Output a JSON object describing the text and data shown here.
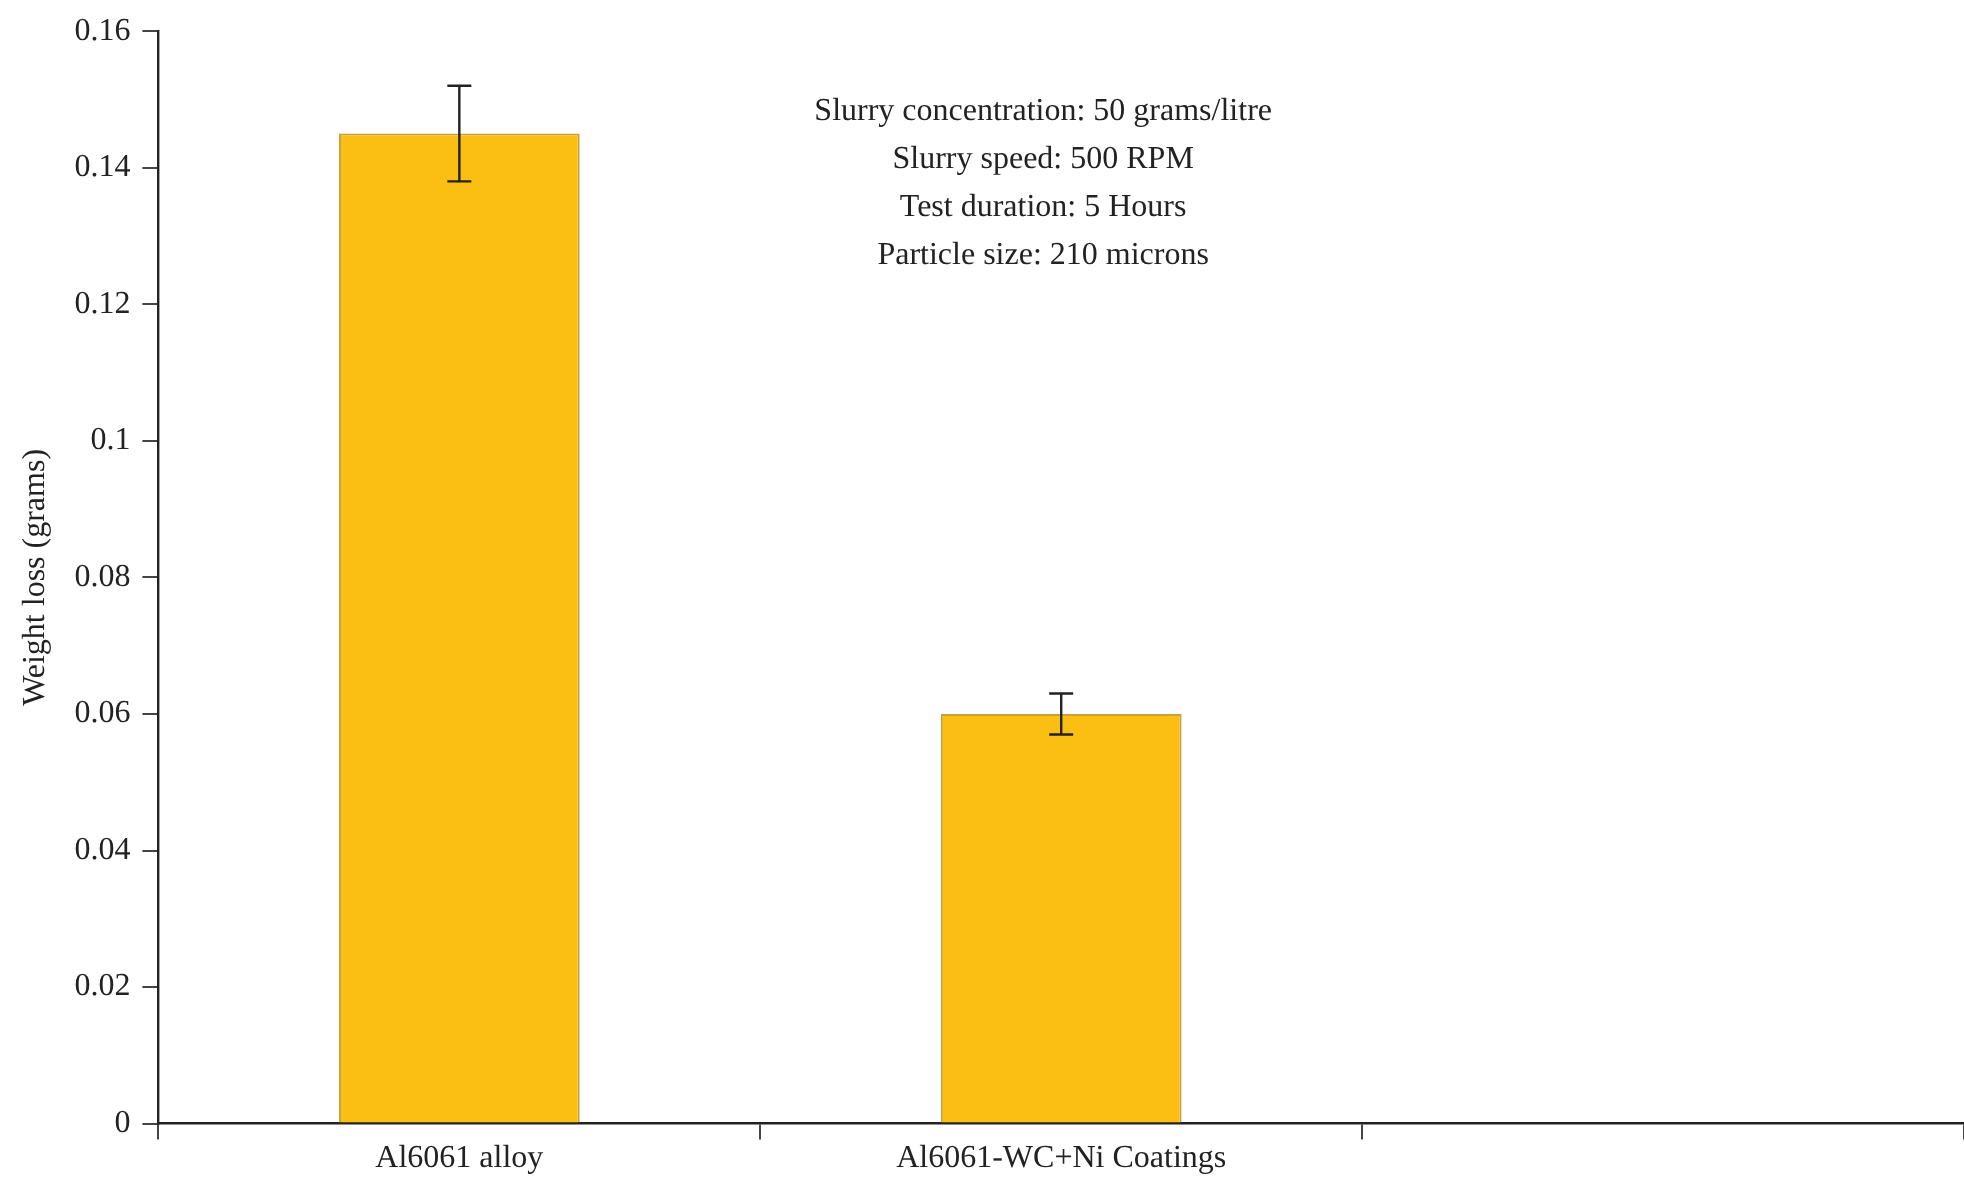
{
  "chart_data": {
    "type": "bar",
    "ylabel": "Weight loss (grams)",
    "categories": [
      "Al6061 alloy",
      "Al6061-WC+Ni Coatings",
      null
    ],
    "values": [
      0.145,
      0.06,
      null
    ],
    "errors": [
      0.007,
      0.003,
      null
    ],
    "color": "#fbbf13",
    "ylim": [
      0,
      0.16
    ],
    "yticks": [
      0,
      0.02,
      0.04,
      0.06,
      0.08,
      0.1,
      0.12,
      0.14,
      0.16
    ],
    "grid": false,
    "legend": false,
    "annotations": [
      "Slurry concentration: 50 grams/litre",
      "Slurry speed: 500 RPM",
      "Test duration: 5 Hours",
      "Particle size: 210 microns"
    ]
  }
}
